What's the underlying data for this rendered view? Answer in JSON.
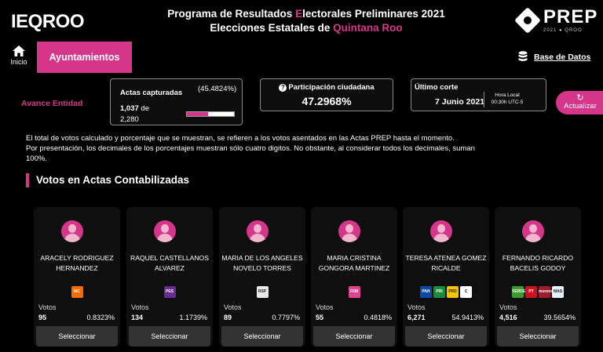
{
  "header": {
    "logo_text": "IEQROO",
    "title_line1_pre": "Programa de Resultados ",
    "title_line1_hl": "E",
    "title_line1_post": "lectorales Preliminares 2021",
    "title_line2_pre": "Elecciones Estatales de ",
    "title_line2_hl": "Quintana Roo",
    "prep_word": "PREP",
    "prep_sub": "2021 ● QROO"
  },
  "nav": {
    "home_label": "Inicio",
    "active_tab": "Ayuntamientos",
    "db_link": "Base de Datos"
  },
  "stats": {
    "avance_label": "Avance Entidad",
    "actas_label": "Actas capturadas",
    "actas_pct": "(45.4824%)",
    "actas_count": "1,037",
    "actas_de": "de",
    "actas_total": "2,280",
    "actas_fraction": 0.454824,
    "participacion_label": "Participación ciudadana",
    "participacion_value": "47.2968%",
    "corte_label": "Último corte",
    "corte_date": "7 Junio 2021",
    "corte_time_line1": "Hora Local",
    "corte_time_line2": "00:30h UTC-5",
    "refresh_label": "Actualizar"
  },
  "note": {
    "line1": "El total de votos calculado y porcentaje que se muestran, se refieren a los votos asentados en las Actas PREP hasta el momento.",
    "line2": "Por presentación, los decimales de los porcentajes muestran sólo cuatro digitos. No obstante, al considerar todos los decimales, suman 100%."
  },
  "section_title": "Votos en Actas Contabilizadas",
  "candidates": [
    {
      "name": "ARACELY RODRIGUEZ HERNANDEZ",
      "votes_label": "Votos",
      "votes": "95",
      "pct": "0.8323%",
      "button": "Seleccionar",
      "logos": [
        {
          "icon": "mc-logo",
          "color": "#ff6a00",
          "text": "MC"
        }
      ]
    },
    {
      "name": "RAQUEL CASTELLANOS ALVAREZ",
      "votes_label": "Votos",
      "votes": "134",
      "pct": "1.1739%",
      "button": "Seleccionar",
      "logos": [
        {
          "icon": "pes-logo",
          "color": "#6a2c91",
          "text": "PES"
        }
      ]
    },
    {
      "name": "MARIA DE LOS ANGELES NOVELO TORRES",
      "votes_label": "Votos",
      "votes": "89",
      "pct": "0.7797%",
      "button": "Seleccionar",
      "logos": [
        {
          "icon": "rsp-logo",
          "color": "#e8e8e8",
          "text": "RSP"
        }
      ]
    },
    {
      "name": "MARIA CRISTINA GONGORA MARTINEZ",
      "votes_label": "Votos",
      "votes": "55",
      "pct": "0.4818%",
      "button": "Seleccionar",
      "logos": [
        {
          "icon": "fxm-logo",
          "color": "#e0448f",
          "text": "FXM"
        }
      ]
    },
    {
      "name": "TERESA ATENEA GOMEZ RICALDE",
      "votes_label": "Votos",
      "votes": "6,271",
      "pct": "54.9413%",
      "button": "Seleccionar",
      "logos": [
        {
          "icon": "pan-logo",
          "color": "#0b4aa2",
          "text": "PAN"
        },
        {
          "icon": "pri-logo",
          "color": "#1c8a3c",
          "text": "PRI"
        },
        {
          "icon": "prd-logo",
          "color": "#f5c400",
          "text": "PRD"
        },
        {
          "icon": "cqroo-logo",
          "color": "#ffffff",
          "text": "C"
        }
      ]
    },
    {
      "name": "FERNANDO RICARDO BACELIS GODOY",
      "votes_label": "Votos",
      "votes": "4,516",
      "pct": "39.5654%",
      "button": "Seleccionar",
      "logos": [
        {
          "icon": "pvem-logo",
          "color": "#3b9b2e",
          "text": "VERDE"
        },
        {
          "icon": "pt-logo",
          "color": "#d0101c",
          "text": "PT"
        },
        {
          "icon": "morena-logo",
          "color": "#a01c2c",
          "text": "morena"
        },
        {
          "icon": "mas-logo",
          "color": "#e6f1fa",
          "text": "MAS"
        }
      ]
    }
  ],
  "colors": {
    "accent": "#d6368a",
    "background": "#000000",
    "card": "#0f0f0f"
  }
}
